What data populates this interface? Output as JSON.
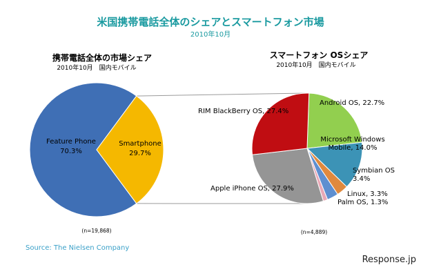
{
  "title": "米国携帯電話全体のシェアとスマートフォン市場",
  "subtitle": "2010年10月",
  "colors": {
    "title": "#1a9aa0",
    "source": "#3aa0c8",
    "connector": "#9a9a9a"
  },
  "chart_data": [
    {
      "type": "pie",
      "title": "携帯電話全体の市場シェア",
      "subtitle": "2010年10月　国内モバイル",
      "note": "(n=19,868)",
      "slices": [
        {
          "name": "Feature Phone",
          "value": 70.3,
          "label": "70.3%",
          "color": "#3f6fb5"
        },
        {
          "name": "Smartphone",
          "value": 29.7,
          "label": "29.7%",
          "color": "#f5b800"
        }
      ]
    },
    {
      "type": "pie",
      "title": "スマートフォン OSシェア",
      "subtitle": "2010年10月　国内モバイル",
      "note": "(n=4,889)",
      "slices": [
        {
          "name": "Android OS",
          "value": 22.7,
          "label": "Android OS, 22.7%",
          "color": "#92cf4f"
        },
        {
          "name": "Microsoft Windows Mobile",
          "value": 14.0,
          "label": "Microsoft Windows Mobile, 14.0%",
          "color": "#3c93b6"
        },
        {
          "name": "Symbian OS",
          "value": 3.4,
          "label": "Symbian OS 3.4%",
          "color": "#e0893d"
        },
        {
          "name": "Linux",
          "value": 3.3,
          "label": "Linux, 3.3%",
          "color": "#5e8fd0"
        },
        {
          "name": "Palm OS",
          "value": 1.3,
          "label": "Palm OS, 1.3%",
          "color": "#e8a8b6"
        },
        {
          "name": "Apple iPhone OS",
          "value": 27.9,
          "label": "Apple iPhone OS, 27.9%",
          "color": "#959595"
        },
        {
          "name": "RIM BlackBerry OS",
          "value": 27.4,
          "label": "RIM BlackBerry OS, 27.4%",
          "color": "#c00d12"
        }
      ]
    }
  ],
  "source": "Source: The Nielsen Company",
  "credit": "Response.jp"
}
